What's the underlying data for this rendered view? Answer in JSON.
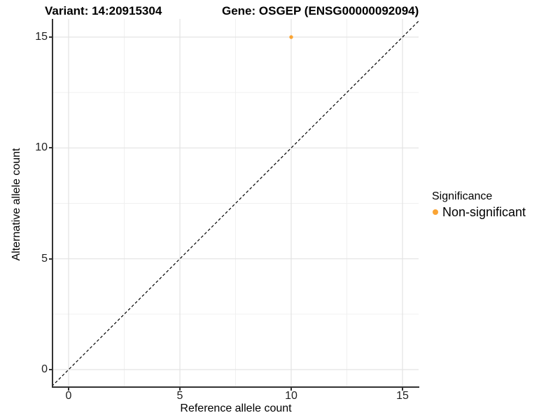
{
  "titles": {
    "variant": "Variant: 14:20915304",
    "gene": "Gene: OSGEP (ENSG00000092094)"
  },
  "axes": {
    "x": {
      "label": "Reference allele count",
      "ticks": [
        "0",
        "5",
        "10",
        "15"
      ]
    },
    "y": {
      "label": "Alternative allele count",
      "ticks": [
        "0",
        "5",
        "10",
        "15"
      ]
    }
  },
  "legend": {
    "title": "Significance",
    "items": [
      {
        "label": "Non-significant",
        "color": "#FAA434"
      }
    ]
  },
  "colors": {
    "point": "#FAA434",
    "axis_line": "#333333",
    "grid_major": "#e3e3e3",
    "grid_minor": "#f0f0f0",
    "reference_line": "#000000",
    "background": "#ffffff"
  },
  "chart_data": {
    "type": "scatter",
    "title": "Variant: 14:20915304",
    "subtitle": "Gene: OSGEP (ENSG00000092094)",
    "xlabel": "Reference allele count",
    "ylabel": "Alternative allele count",
    "xlim": [
      -0.75,
      15.75
    ],
    "ylim": [
      -0.75,
      15.75
    ],
    "x_ticks": [
      0,
      5,
      10,
      15
    ],
    "y_ticks": [
      0,
      5,
      10,
      15
    ],
    "grid": "major+minor",
    "legend_position": "right",
    "series": [
      {
        "name": "Non-significant",
        "color": "#FAA434",
        "points": [
          {
            "x": 10,
            "y": 15
          }
        ]
      }
    ],
    "reference_line": {
      "equation": "y = x",
      "style": "dashed",
      "color": "#000000"
    }
  }
}
